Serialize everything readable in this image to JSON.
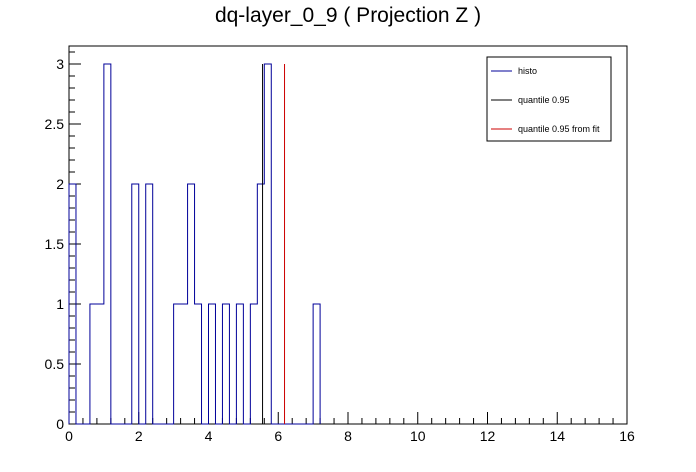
{
  "chart_data": {
    "type": "line",
    "title": "dq-layer_0_9 ( Projection Z )",
    "xlabel": "",
    "ylabel": "",
    "xlim": [
      0,
      16
    ],
    "ylim": [
      0,
      3.15
    ],
    "x_ticks": [
      "0",
      "2",
      "4",
      "6",
      "8",
      "10",
      "12",
      "14",
      "16"
    ],
    "y_ticks": [
      "0",
      "0.5",
      "1",
      "1.5",
      "2",
      "2.5",
      "3"
    ],
    "bin_width": 0.2,
    "series": [
      {
        "name": "histo",
        "style": "step",
        "color": "#000099",
        "bin_edges_start": 0,
        "values": [
          2,
          0,
          0,
          1,
          1,
          3,
          0,
          0,
          0,
          2,
          0,
          2,
          0,
          0,
          0,
          1,
          1,
          2,
          1,
          0,
          1,
          0,
          1,
          0,
          1,
          0,
          1,
          2,
          3,
          0,
          0,
          0,
          0,
          0,
          0,
          1
        ]
      },
      {
        "name": "quantile 0.95",
        "style": "vline",
        "color": "#000000",
        "x": 5.55,
        "y": 3
      },
      {
        "name": "quantile 0.95 from fit",
        "style": "vline",
        "color": "#cc0000",
        "x": 6.18,
        "y": 3
      }
    ],
    "legend": {
      "placement": "top-right",
      "entries": [
        "histo",
        "quantile 0.95",
        "quantile 0.95 from fit"
      ]
    }
  }
}
